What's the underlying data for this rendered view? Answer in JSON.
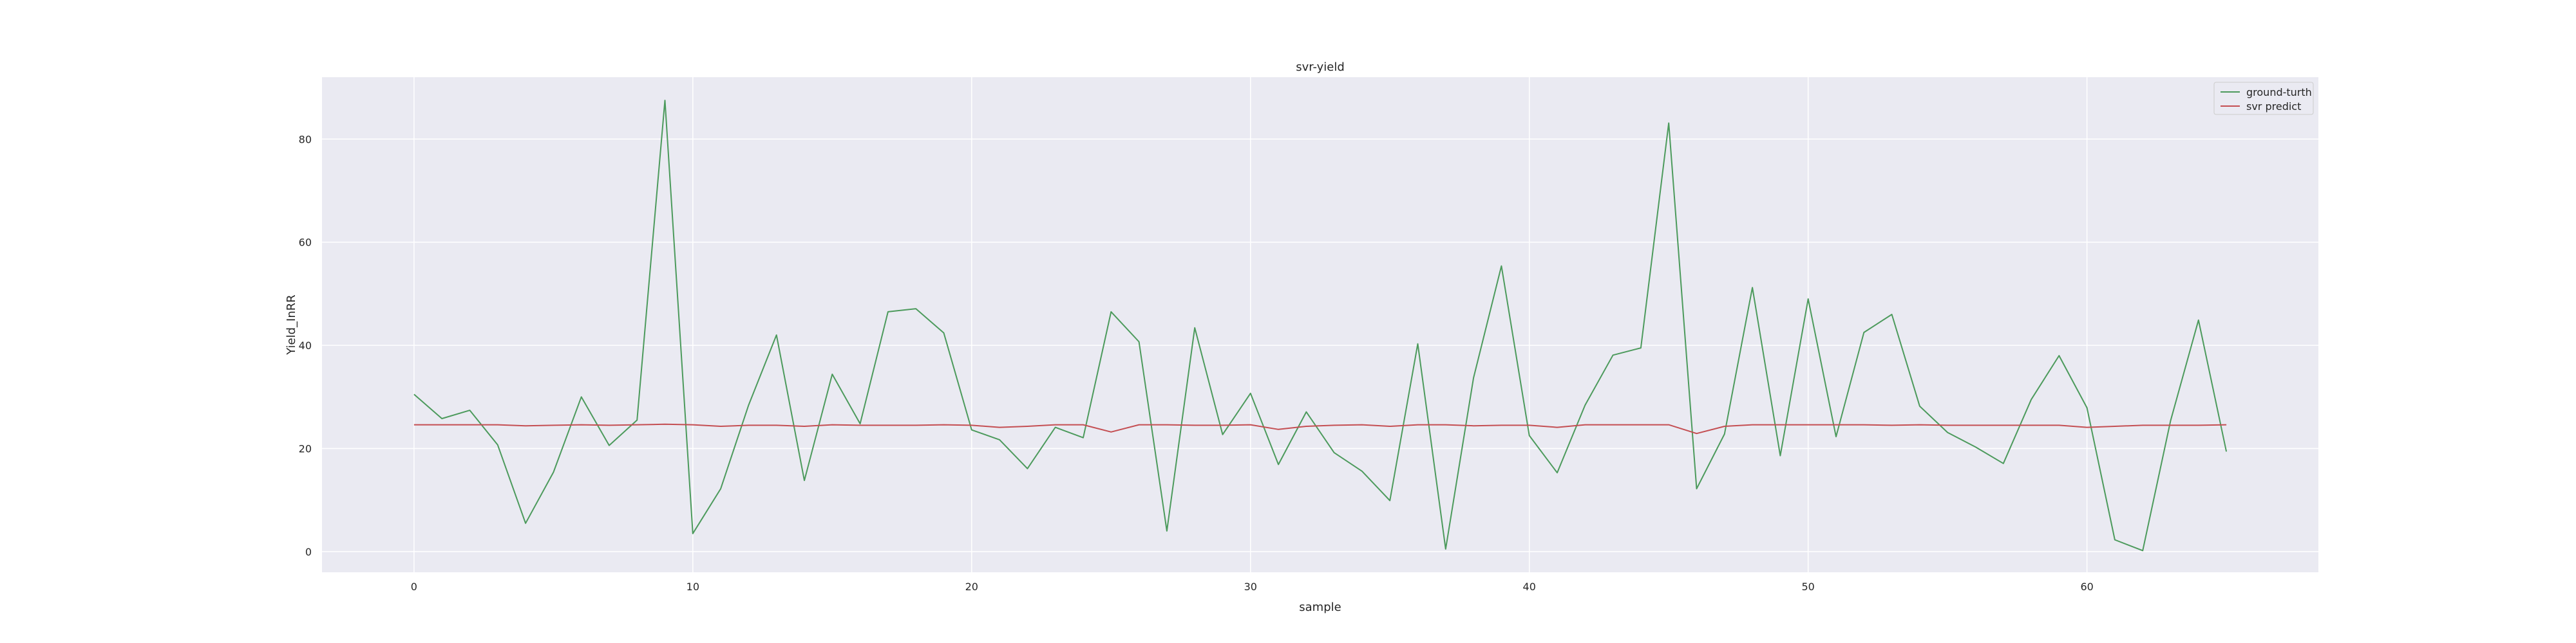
{
  "chart_data": {
    "type": "line",
    "title": "svr-yield",
    "xlabel": "sample",
    "ylabel": "Yield_InRR",
    "xlim": [
      -3.3,
      68.3
    ],
    "ylim": [
      -4,
      92
    ],
    "xticks": [
      0,
      10,
      20,
      30,
      40,
      50,
      60
    ],
    "yticks": [
      0,
      20,
      40,
      60,
      80
    ],
    "grid": true,
    "legend_position": "top-right",
    "colors": {
      "plot_bg": "#eaeaf2",
      "grid": "#ffffff",
      "ground_truth": "#4c9a5c",
      "svr_predict": "#c44e52"
    },
    "series": [
      {
        "name": "ground-turth",
        "values": [
          30.5,
          25.8,
          27.4,
          20.7,
          5.5,
          15.4,
          30.0,
          20.6,
          25.5,
          87.5,
          3.5,
          12.2,
          28.4,
          42.0,
          13.8,
          34.4,
          24.8,
          46.5,
          47.1,
          42.4,
          23.6,
          21.7,
          16.1,
          24.1,
          22.1,
          46.5,
          40.7,
          4.0,
          43.4,
          22.7,
          30.7,
          16.9,
          27.1,
          19.2,
          15.6,
          9.9,
          40.3,
          0.5,
          33.7,
          55.4,
          22.5,
          15.3,
          28.4,
          38.1,
          39.5,
          83.1,
          12.2,
          22.8,
          51.2,
          18.6,
          49.0,
          22.3,
          42.5,
          46.0,
          28.2,
          23.1,
          20.3,
          17.1,
          29.5,
          38.0,
          27.9,
          2.3,
          0.2,
          25.4,
          44.9,
          19.4
        ]
      },
      {
        "name": "svr predict",
        "values": [
          24.6,
          24.6,
          24.6,
          24.6,
          24.4,
          24.5,
          24.6,
          24.5,
          24.6,
          24.7,
          24.6,
          24.3,
          24.5,
          24.5,
          24.3,
          24.6,
          24.5,
          24.5,
          24.5,
          24.6,
          24.5,
          24.1,
          24.3,
          24.6,
          24.6,
          23.2,
          24.6,
          24.6,
          24.5,
          24.5,
          24.6,
          23.7,
          24.3,
          24.5,
          24.6,
          24.3,
          24.6,
          24.6,
          24.4,
          24.5,
          24.5,
          24.1,
          24.6,
          24.6,
          24.6,
          24.6,
          22.9,
          24.3,
          24.6,
          24.6,
          24.6,
          24.6,
          24.6,
          24.5,
          24.6,
          24.5,
          24.5,
          24.5,
          24.5,
          24.5,
          24.1,
          24.3,
          24.5,
          24.5,
          24.5,
          24.6
        ]
      }
    ]
  }
}
